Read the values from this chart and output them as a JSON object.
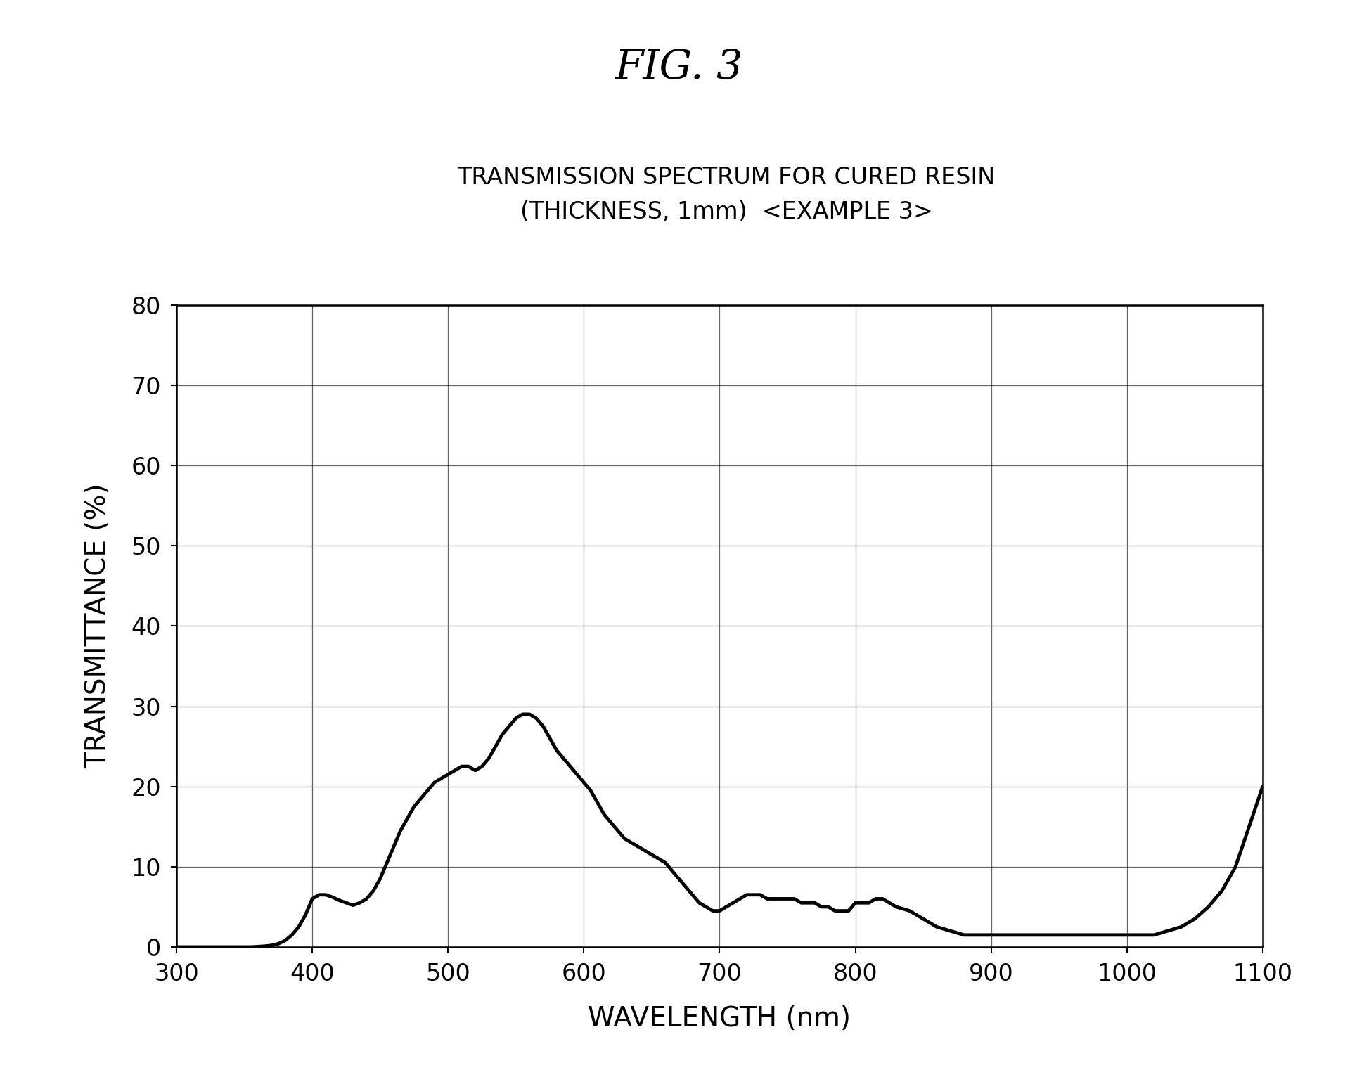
{
  "fig_title": "FIG. 3",
  "chart_title_line1": "TRANSMISSION SPECTRUM FOR CURED RESIN",
  "chart_title_line2": "(THICKNESS, 1mm)  <EXAMPLE 3>",
  "xlabel": "WAVELENGTH (nm)",
  "ylabel": "TRANSMITTANCE (%)",
  "xlim": [
    300,
    1100
  ],
  "ylim": [
    0,
    80
  ],
  "xticks": [
    300,
    400,
    500,
    600,
    700,
    800,
    900,
    1000,
    1100
  ],
  "yticks": [
    0,
    10,
    20,
    30,
    40,
    50,
    60,
    70,
    80
  ],
  "line_color": "#000000",
  "line_width": 3.5,
  "background_color": "#ffffff",
  "wavelengths": [
    300,
    320,
    340,
    355,
    365,
    370,
    375,
    380,
    385,
    390,
    395,
    400,
    405,
    410,
    415,
    420,
    425,
    430,
    435,
    440,
    445,
    450,
    455,
    460,
    465,
    470,
    475,
    480,
    485,
    490,
    495,
    500,
    505,
    510,
    515,
    520,
    525,
    530,
    535,
    540,
    545,
    550,
    555,
    560,
    565,
    570,
    575,
    580,
    585,
    590,
    595,
    600,
    605,
    610,
    615,
    620,
    625,
    630,
    635,
    640,
    645,
    650,
    655,
    660,
    665,
    670,
    675,
    680,
    685,
    690,
    695,
    700,
    705,
    710,
    715,
    720,
    725,
    730,
    735,
    740,
    745,
    750,
    755,
    760,
    765,
    770,
    775,
    780,
    785,
    790,
    795,
    800,
    805,
    810,
    815,
    820,
    825,
    830,
    840,
    850,
    860,
    870,
    880,
    890,
    900,
    910,
    920,
    930,
    940,
    950,
    960,
    970,
    980,
    990,
    1000,
    1010,
    1020,
    1030,
    1040,
    1050,
    1060,
    1070,
    1080,
    1090,
    1100
  ],
  "transmittances": [
    0,
    0,
    0,
    0,
    0.1,
    0.2,
    0.4,
    0.8,
    1.5,
    2.5,
    4.0,
    6.0,
    6.5,
    6.5,
    6.2,
    5.8,
    5.5,
    5.2,
    5.5,
    6.0,
    7.0,
    8.5,
    10.5,
    12.5,
    14.5,
    16.0,
    17.5,
    18.5,
    19.5,
    20.5,
    21.0,
    21.5,
    22.0,
    22.5,
    22.5,
    22.0,
    22.5,
    23.5,
    25.0,
    26.5,
    27.5,
    28.5,
    29.0,
    29.0,
    28.5,
    27.5,
    26.0,
    24.5,
    23.5,
    22.5,
    21.5,
    20.5,
    19.5,
    18.0,
    16.5,
    15.5,
    14.5,
    13.5,
    13.0,
    12.5,
    12.0,
    11.5,
    11.0,
    10.5,
    9.5,
    8.5,
    7.5,
    6.5,
    5.5,
    5.0,
    4.5,
    4.5,
    5.0,
    5.5,
    6.0,
    6.5,
    6.5,
    6.5,
    6.0,
    6.0,
    6.0,
    6.0,
    6.0,
    5.5,
    5.5,
    5.5,
    5.0,
    5.0,
    4.5,
    4.5,
    4.5,
    5.5,
    5.5,
    5.5,
    6.0,
    6.0,
    5.5,
    5.0,
    4.5,
    3.5,
    2.5,
    2.0,
    1.5,
    1.5,
    1.5,
    1.5,
    1.5,
    1.5,
    1.5,
    1.5,
    1.5,
    1.5,
    1.5,
    1.5,
    1.5,
    1.5,
    1.5,
    2.0,
    2.5,
    3.5,
    5.0,
    7.0,
    10.0,
    15.0,
    20.0
  ]
}
